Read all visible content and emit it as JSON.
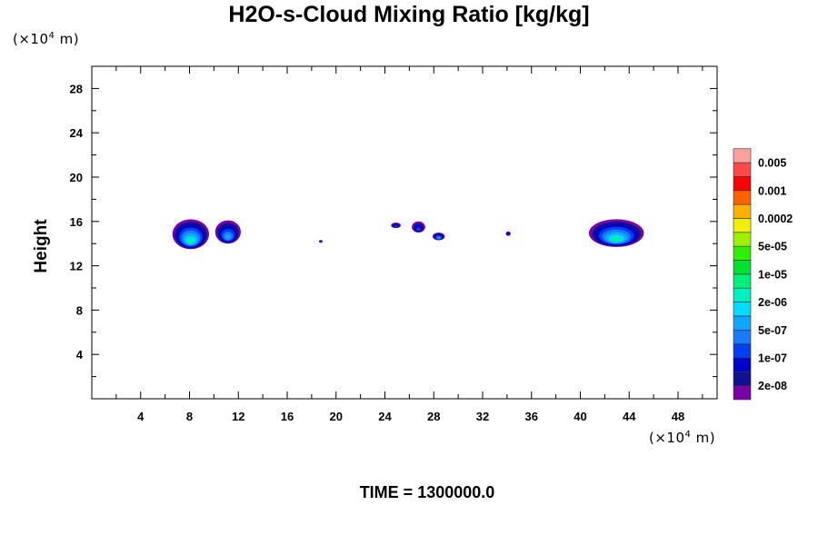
{
  "chart_data": {
    "type": "heatmap",
    "title": "H2O-s-Cloud Mixing Ratio [kg/kg]",
    "ylabel": "Height",
    "xlabel": "",
    "x_unit_prefix": "(×10",
    "x_unit_exp": "4",
    "x_unit_suffix": " m)",
    "y_unit_prefix": "(×10",
    "y_unit_exp": "4",
    "y_unit_suffix": " m)",
    "time_label": "TIME = 1300000.0",
    "xlim": [
      0,
      51.2
    ],
    "ylim": [
      0,
      30
    ],
    "x_ticks": [
      "4",
      "8",
      "12",
      "16",
      "20",
      "24",
      "28",
      "32",
      "36",
      "40",
      "44",
      "48"
    ],
    "y_ticks": [
      "4",
      "8",
      "12",
      "16",
      "20",
      "24",
      "28"
    ],
    "colorbar": {
      "colors": [
        "#7a00a8",
        "#101090",
        "#0000cc",
        "#0040f0",
        "#1a7aff",
        "#10a8ff",
        "#00dcff",
        "#00f0c0",
        "#00f078",
        "#00e030",
        "#30f000",
        "#a0f000",
        "#f0f000",
        "#ffb000",
        "#ff6000",
        "#ff0000",
        "#ff4848",
        "#ffa0a0"
      ],
      "labels": [
        "2e-08",
        "1e-07",
        "5e-07",
        "2e-06",
        "1e-05",
        "5e-05",
        "0.0002",
        "0.001",
        "0.005"
      ]
    },
    "cloud_regions": [
      {
        "x": [
          6.6,
          9.6
        ],
        "y": [
          13.5,
          16.2
        ],
        "max_level": "2e-06"
      },
      {
        "x": [
          10.1,
          12.2
        ],
        "y": [
          14.0,
          16.1
        ],
        "max_level": "5e-07"
      },
      {
        "x": [
          18.6,
          18.9
        ],
        "y": [
          14.1,
          14.3
        ],
        "max_level": "1e-07"
      },
      {
        "x": [
          24.5,
          25.3
        ],
        "y": [
          15.4,
          15.9
        ],
        "max_level": "1e-07"
      },
      {
        "x": [
          26.2,
          27.3
        ],
        "y": [
          15.0,
          16.0
        ],
        "max_level": "1e-07"
      },
      {
        "x": [
          27.9,
          28.9
        ],
        "y": [
          14.3,
          15.0
        ],
        "max_level": "5e-07"
      },
      {
        "x": [
          33.9,
          34.3
        ],
        "y": [
          14.7,
          15.1
        ],
        "max_level": "1e-07"
      },
      {
        "x": [
          40.7,
          45.2
        ],
        "y": [
          13.7,
          16.2
        ],
        "max_level": "2e-06"
      }
    ]
  }
}
